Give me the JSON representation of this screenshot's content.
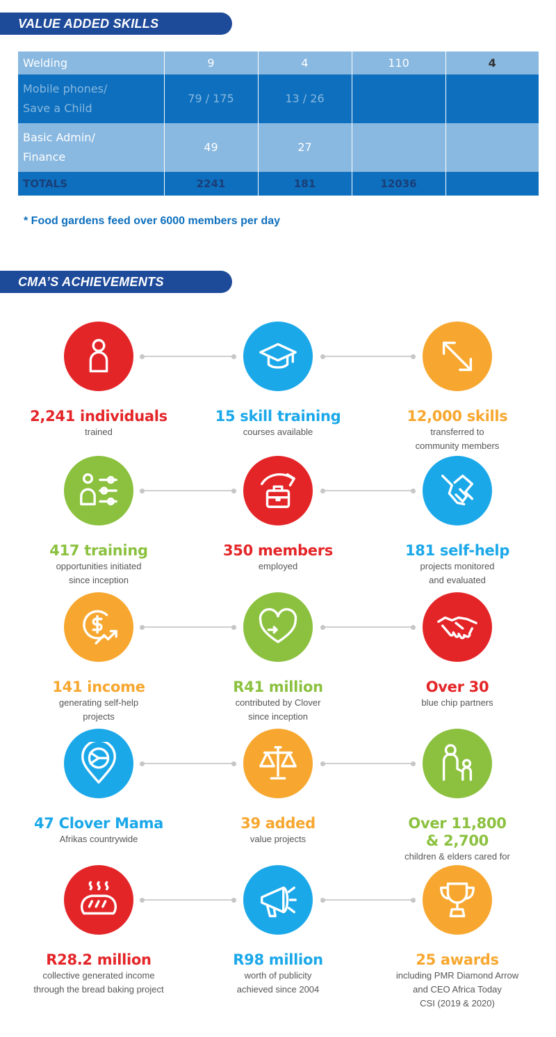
{
  "headings": {
    "skills": "VALUE ADDED SKILLS",
    "achievements": "CMA’S ACHIEVEMENTS"
  },
  "table": {
    "rows": [
      {
        "label": "Welding",
        "c1": "9",
        "c2": "4",
        "c3": "110",
        "c4": "4"
      },
      {
        "label_l1": "Mobile phones/",
        "label_l2": "Save a Child",
        "c1": "79 / 175",
        "c2": "13 / 26",
        "c3": "",
        "c4": ""
      },
      {
        "label_l1": "Basic Admin/",
        "label_l2": "Finance",
        "c1": "49",
        "c2": "27",
        "c3": "",
        "c4": ""
      }
    ],
    "totals": {
      "label": "TOTALS",
      "c1": "2241",
      "c2": "181",
      "c3": "12036",
      "c4": ""
    }
  },
  "footnote": "* Food gardens feed over 6000 members per day",
  "colors": {
    "red": "#e42528",
    "blue": "#1ba8e9",
    "orange": "#f7a72f",
    "green": "#8bc13f",
    "navy": "#1e4a9a"
  },
  "achievements": [
    {
      "icon": "person-icon",
      "color": "red",
      "value": "2,241 individuals",
      "desc": [
        "trained"
      ]
    },
    {
      "icon": "graduation-cap-icon",
      "color": "blue",
      "value": "15 skill training",
      "desc": [
        "courses available"
      ]
    },
    {
      "icon": "transfer-arrows-icon",
      "color": "orange",
      "value": "12,000 skills",
      "desc": [
        "transferred to",
        "community members"
      ]
    },
    {
      "icon": "training-sliders-icon",
      "color": "green",
      "value": "417 training",
      "desc": [
        "opportunities initiated",
        "since inception"
      ]
    },
    {
      "icon": "briefcase-arrow-icon",
      "color": "red",
      "value": "350 members",
      "desc": [
        "employed"
      ]
    },
    {
      "icon": "helping-hands-icon",
      "color": "blue",
      "value": "181 self-help",
      "desc": [
        "projects monitored",
        "and evaluated"
      ]
    },
    {
      "icon": "income-growth-icon",
      "color": "orange",
      "value": "141 income",
      "desc": [
        "generating self-help",
        "projects"
      ]
    },
    {
      "icon": "heart-hand-icon",
      "color": "green",
      "value": "R41 million",
      "desc": [
        "contributed by Clover",
        "since inception"
      ]
    },
    {
      "icon": "handshake-icon",
      "color": "red",
      "value": "Over 30",
      "desc": [
        "blue chip partners"
      ]
    },
    {
      "icon": "location-pin-flag-icon",
      "color": "blue",
      "value": "47 Clover Mama",
      "desc": [
        "Afrikas countrywide"
      ]
    },
    {
      "icon": "scales-icon",
      "color": "orange",
      "value": "39 added",
      "desc": [
        "value projects"
      ]
    },
    {
      "icon": "adult-child-icon",
      "color": "green",
      "value": "Over 11,800 & 2,700",
      "desc": [
        "children & elders cared for"
      ]
    },
    {
      "icon": "bread-icon",
      "color": "red",
      "value": "R28.2 million",
      "desc": [
        "collective generated income",
        "through the bread baking project"
      ]
    },
    {
      "icon": "megaphone-icon",
      "color": "blue",
      "value": "R98 million",
      "desc": [
        "worth of publicity",
        "achieved since 2004"
      ]
    },
    {
      "icon": "trophy-icon",
      "color": "orange",
      "value": "25 awards",
      "desc": [
        "including PMR Diamond Arrow",
        "and CEO Africa Today",
        "CSI (2019 & 2020)"
      ]
    }
  ]
}
